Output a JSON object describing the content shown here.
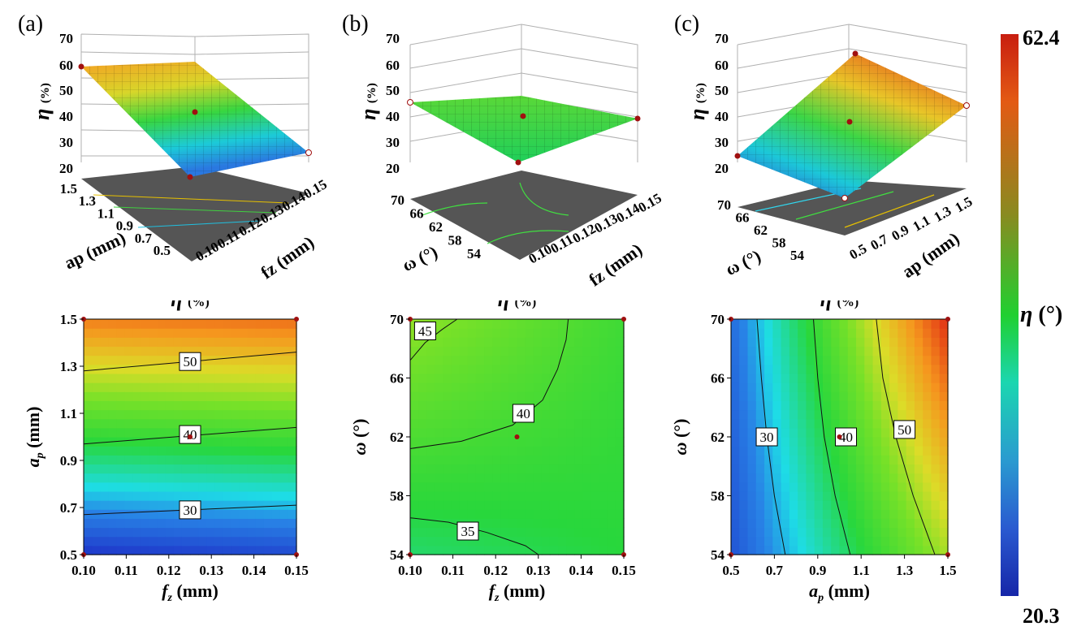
{
  "panel_labels": [
    "(a)",
    "(b)",
    "(c)"
  ],
  "colorbar": {
    "max_label": "62.4",
    "min_label": "20.3",
    "max": 62.4,
    "min": 20.3,
    "title_symbol": "η",
    "title_unit": "(°)",
    "top_color": "#c81e10",
    "bottom_color": "#1626a8"
  },
  "surface_axis": {
    "symbol": "η",
    "unit": "(%)",
    "ticks": [
      "70",
      "60",
      "50",
      "40",
      "30",
      "20"
    ]
  },
  "surfaces": [
    {
      "panel": "(a)",
      "x_label": "fz (mm)",
      "x_ticks": [
        "0.10",
        "0.11",
        "0.12",
        "0.13",
        "0.14",
        "0.15"
      ],
      "y_label": "ap (mm)",
      "y_ticks": [
        "1.5",
        "1.3",
        "1.1",
        "0.9",
        "0.7",
        "0.5"
      ]
    },
    {
      "panel": "(b)",
      "x_label": "fz (mm)",
      "x_ticks": [
        "0.10",
        "0.11",
        "0.12",
        "0.13",
        "0.14",
        "0.15"
      ],
      "y_label": "ω (°)",
      "y_ticks": [
        "70",
        "66",
        "62",
        "58",
        "54"
      ]
    },
    {
      "panel": "(c)",
      "x_label": "ap (mm)",
      "x_ticks": [
        "0.5",
        "0.7",
        "0.9",
        "1.1",
        "1.3",
        "1.5"
      ],
      "y_label": "ω (°)",
      "y_ticks": [
        "70",
        "66",
        "62",
        "58",
        "54"
      ]
    }
  ],
  "chart_data": [
    {
      "type": "heatmap",
      "panel": "(a)",
      "title_symbol": "η",
      "title_unit": "(%)",
      "xlabel_sym": "f",
      "xlabel_sub": "z",
      "xlabel_unit": " (mm)",
      "ylabel_sym": "a",
      "ylabel_sub": "p",
      "ylabel_unit": " (mm)",
      "xlim": [
        0.1,
        0.15
      ],
      "ylim": [
        0.5,
        1.5
      ],
      "x_ticks": [
        "0.10",
        "0.11",
        "0.12",
        "0.13",
        "0.14",
        "0.15"
      ],
      "y_ticks": [
        "0.5",
        "0.7",
        "0.9",
        "1.1",
        "1.3",
        "1.5"
      ],
      "corner_values": {
        "x0y0": 20.3,
        "x1y0": 22.0,
        "x0y1": 57.5,
        "x1y1": 58.5
      },
      "contours": [
        {
          "level": "30",
          "points": [
            [
              0.1,
              0.67
            ],
            [
              0.15,
              0.71
            ]
          ],
          "label_at": [
            0.125,
            0.69
          ]
        },
        {
          "level": "40",
          "points": [
            [
              0.1,
              0.97
            ],
            [
              0.15,
              1.04
            ]
          ],
          "label_at": [
            0.125,
            1.01
          ]
        },
        {
          "level": "50",
          "points": [
            [
              0.1,
              1.28
            ],
            [
              0.15,
              1.36
            ]
          ],
          "label_at": [
            0.125,
            1.32
          ]
        }
      ],
      "design_points": [
        [
          0.1,
          0.5
        ],
        [
          0.15,
          0.5
        ],
        [
          0.1,
          1.5
        ],
        [
          0.15,
          1.5
        ],
        [
          0.125,
          1.0
        ]
      ]
    },
    {
      "type": "heatmap",
      "panel": "(b)",
      "title_symbol": "η",
      "title_unit": "(%)",
      "xlabel_sym": "f",
      "xlabel_sub": "z",
      "xlabel_unit": " (mm)",
      "ylabel_sym": "ω",
      "ylabel_sub": "",
      "ylabel_unit": " (°)",
      "xlim": [
        0.1,
        0.15
      ],
      "ylim": [
        54,
        70
      ],
      "x_ticks": [
        "0.10",
        "0.11",
        "0.12",
        "0.13",
        "0.14",
        "0.15"
      ],
      "y_ticks": [
        "54",
        "58",
        "62",
        "66",
        "70"
      ],
      "corner_values": {
        "x0y0": 36.0,
        "x1y0": 38.0,
        "x0y1": 46.5,
        "x1y1": 40.0
      },
      "contours": [
        {
          "level": "45",
          "points": [
            [
              0.1,
              67.2
            ],
            [
              0.1035,
              68.4
            ],
            [
              0.1075,
              69.3
            ],
            [
              0.111,
              70
            ]
          ],
          "label_at": [
            0.1035,
            69.2
          ]
        },
        {
          "level": "40",
          "points": [
            [
              0.1,
              61.2
            ],
            [
              0.112,
              61.7
            ],
            [
              0.124,
              62.8
            ],
            [
              0.131,
              64.5
            ],
            [
              0.1345,
              66.6
            ],
            [
              0.1365,
              68.6
            ],
            [
              0.137,
              70
            ]
          ],
          "label_at": [
            0.1265,
            63.6
          ]
        },
        {
          "level": "35",
          "points": [
            [
              0.1,
              56.5
            ],
            [
              0.109,
              56.2
            ],
            [
              0.118,
              55.5
            ],
            [
              0.127,
              54.6
            ],
            [
              0.13,
              54
            ]
          ],
          "label_at": [
            0.1135,
            55.6
          ]
        }
      ],
      "design_points": [
        [
          0.1,
          54
        ],
        [
          0.15,
          54
        ],
        [
          0.1,
          70
        ],
        [
          0.15,
          70
        ],
        [
          0.125,
          62
        ]
      ]
    },
    {
      "type": "heatmap",
      "panel": "(c)",
      "title_symbol": "η",
      "title_unit": "(%)",
      "xlabel_sym": "a",
      "xlabel_sub": "p",
      "xlabel_unit": " (mm)",
      "ylabel_sym": "ω",
      "ylabel_sub": "",
      "ylabel_unit": " (°)",
      "xlim": [
        0.5,
        1.5
      ],
      "ylim": [
        54,
        70
      ],
      "x_ticks": [
        "0.5",
        "0.7",
        "0.9",
        "1.1",
        "1.3",
        "1.5"
      ],
      "y_ticks": [
        "54",
        "58",
        "62",
        "66",
        "70"
      ],
      "corner_values": {
        "x0y0": 23.0,
        "x1y0": 47.5,
        "x0y1": 25.0,
        "x1y1": 62.4
      },
      "contours": [
        {
          "level": "30",
          "points": [
            [
              0.62,
              70
            ],
            [
              0.64,
              66
            ],
            [
              0.665,
              62
            ],
            [
              0.7,
              58
            ],
            [
              0.75,
              54
            ]
          ],
          "label_at": [
            0.665,
            62
          ]
        },
        {
          "level": "40",
          "points": [
            [
              0.88,
              70
            ],
            [
              0.9,
              66
            ],
            [
              0.93,
              62
            ],
            [
              0.98,
              58
            ],
            [
              1.05,
              54
            ]
          ],
          "label_at": [
            1.03,
            62
          ]
        },
        {
          "level": "50",
          "points": [
            [
              1.17,
              70
            ],
            [
              1.2,
              66
            ],
            [
              1.26,
              62
            ],
            [
              1.34,
              58
            ],
            [
              1.44,
              54
            ]
          ],
          "label_at": [
            1.3,
            62.5
          ]
        }
      ],
      "design_points": [
        [
          0.5,
          54
        ],
        [
          1.5,
          54
        ],
        [
          0.5,
          70
        ],
        [
          1.5,
          70
        ],
        [
          1.0,
          62
        ]
      ]
    }
  ]
}
